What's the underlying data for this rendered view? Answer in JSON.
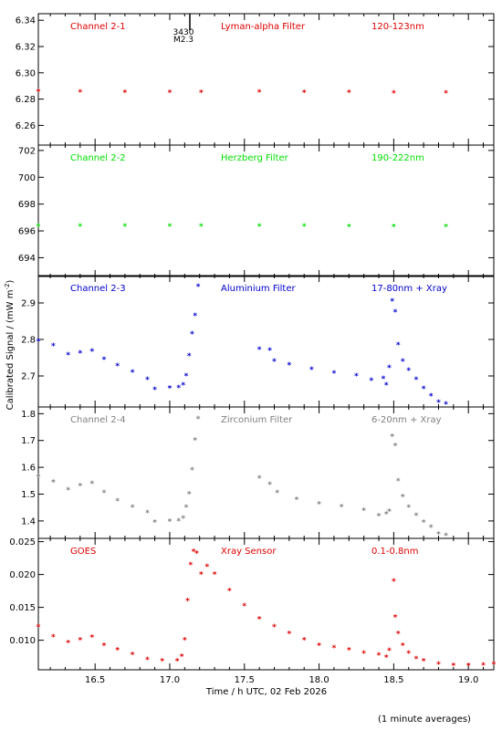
{
  "figure": {
    "y_axis_label": "Calibrated Signal / (mW m",
    "y_axis_label_sup": "-2",
    "y_axis_label_end": ")",
    "x_axis_label": "Time / h UTC, 02 Feb 2026",
    "footnote": "(1 minute averages)",
    "x_ticks": [
      "16.5",
      "17.0",
      "17.5",
      "18.0",
      "18.5",
      "19.0"
    ],
    "event_label_top": "3430",
    "event_label_bottom": "M2.3"
  },
  "chart_data": [
    {
      "type": "scatter",
      "channel": "Channel 2-1",
      "filter": "Lyman-alpha Filter",
      "band": "120-123nm",
      "color": "#e00000",
      "ylim": [
        6.245,
        6.345
      ],
      "yticks": [
        "6.26",
        "6.28",
        "6.30",
        "6.32",
        "6.34"
      ],
      "xlim": [
        16.12,
        19.17
      ],
      "series": [
        {
          "x": [
            16.12,
            16.4,
            16.7,
            17.0,
            17.21
          ],
          "values": [
            6.2855,
            6.2853,
            6.2851,
            6.285,
            6.2849
          ]
        },
        {
          "x": [
            17.6,
            17.9,
            18.2,
            18.5,
            18.85
          ],
          "values": [
            6.2852,
            6.285,
            6.2849,
            6.2847,
            6.2846
          ]
        }
      ]
    },
    {
      "type": "scatter",
      "channel": "Channel 2-2",
      "filter": "Herzberg Filter",
      "band": "190-222nm",
      "color": "#00e000",
      "ylim": [
        692.6,
        702.4
      ],
      "yticks": [
        "694",
        "696",
        "698",
        "700",
        "702"
      ],
      "xlim": [
        16.12,
        19.17
      ],
      "series": [
        {
          "x": [
            16.12,
            16.4,
            16.7,
            17.0,
            17.21
          ],
          "values": [
            696.35,
            696.35,
            696.34,
            696.34,
            696.33
          ]
        },
        {
          "x": [
            17.6,
            17.9,
            18.2,
            18.5,
            18.85
          ],
          "values": [
            696.33,
            696.33,
            696.32,
            696.32,
            696.31
          ]
        }
      ]
    },
    {
      "type": "scatter",
      "channel": "Channel 2-3",
      "filter": "Aluminium Filter",
      "band": "17-80nm + Xray",
      "color": "#0000d0",
      "ylim": [
        2.615,
        2.975
      ],
      "yticks": [
        "2.7",
        "2.8",
        "2.9"
      ],
      "xlim": [
        16.12,
        19.17
      ],
      "series": [
        {
          "x": [
            16.12,
            16.22,
            16.32,
            16.4,
            16.48,
            16.56,
            16.65,
            16.75,
            16.85,
            16.9,
            17.0,
            17.06,
            17.09,
            17.11,
            17.13,
            17.15,
            17.17,
            17.19
          ],
          "values": [
            2.795,
            2.783,
            2.757,
            2.763,
            2.768,
            2.745,
            2.728,
            2.71,
            2.69,
            2.663,
            2.666,
            2.668,
            2.675,
            2.7,
            2.755,
            2.815,
            2.865,
            2.945
          ]
        },
        {
          "x": [
            17.6,
            17.67,
            17.7,
            17.8,
            17.95,
            18.1,
            18.25,
            18.35,
            18.43,
            18.45
          ],
          "values": [
            2.773,
            2.77,
            2.74,
            2.73,
            2.718,
            2.708,
            2.7,
            2.688,
            2.693,
            2.675
          ]
        },
        {
          "x": [
            18.47,
            18.49,
            18.51,
            18.53,
            18.56,
            18.6,
            18.65,
            18.7,
            18.75,
            18.8,
            18.85
          ],
          "values": [
            2.722,
            2.905,
            2.875,
            2.785,
            2.74,
            2.715,
            2.69,
            2.665,
            2.645,
            2.628,
            2.622
          ]
        }
      ]
    },
    {
      "type": "scatter",
      "channel": "Channel 2-4",
      "filter": "Zirconium Filter",
      "band": "6-20nm + Xray",
      "color": "#808080",
      "ylim": [
        1.335,
        1.825
      ],
      "yticks": [
        "1.4",
        "1.5",
        "1.6",
        "1.7",
        "1.8"
      ],
      "xlim": [
        16.12,
        19.17
      ],
      "series": [
        {
          "x": [
            16.12,
            16.22,
            16.32,
            16.4,
            16.48,
            16.56,
            16.65,
            16.75,
            16.85,
            16.9,
            17.0,
            17.06,
            17.09,
            17.11,
            17.13,
            17.15,
            17.17,
            17.19
          ],
          "values": [
            1.565,
            1.545,
            1.515,
            1.53,
            1.54,
            1.505,
            1.475,
            1.45,
            1.43,
            1.395,
            1.398,
            1.4,
            1.41,
            1.45,
            1.5,
            1.59,
            1.7,
            1.78
          ]
        },
        {
          "x": [
            17.6,
            17.67,
            17.72,
            17.85,
            18.0,
            18.15,
            18.3,
            18.4,
            18.45
          ],
          "values": [
            1.56,
            1.535,
            1.505,
            1.48,
            1.462,
            1.452,
            1.438,
            1.418,
            1.425
          ]
        },
        {
          "x": [
            18.47,
            18.49,
            18.51,
            18.53,
            18.56,
            18.6,
            18.65,
            18.7,
            18.75,
            18.8,
            18.85
          ],
          "values": [
            1.435,
            1.715,
            1.68,
            1.55,
            1.49,
            1.45,
            1.42,
            1.395,
            1.375,
            1.35,
            1.345
          ]
        }
      ]
    },
    {
      "type": "scatter",
      "channel": "GOES",
      "filter": "Xray Sensor",
      "band": "0.1-0.8nm",
      "color": "#e00000",
      "ylim": [
        0.0055,
        0.0255
      ],
      "yticks": [
        "0.010",
        "0.015",
        "0.020",
        "0.025"
      ],
      "xlim": [
        16.12,
        19.17
      ],
      "series": [
        {
          "x": [
            16.12,
            16.22,
            16.32,
            16.4,
            16.48,
            16.56,
            16.65,
            16.75,
            16.85,
            16.95,
            17.05,
            17.08,
            17.1,
            17.12,
            17.14,
            17.16,
            17.18,
            17.21,
            17.25,
            17.3,
            17.4,
            17.5,
            17.6,
            17.7,
            17.8,
            17.9,
            18.0,
            18.1,
            18.2,
            18.3,
            18.4,
            18.45
          ],
          "values": [
            0.012,
            0.0105,
            0.0096,
            0.01,
            0.0104,
            0.0092,
            0.0085,
            0.0078,
            0.007,
            0.0068,
            0.0068,
            0.0075,
            0.01,
            0.016,
            0.0215,
            0.0235,
            0.0232,
            0.02,
            0.0212,
            0.02,
            0.0175,
            0.0152,
            0.0132,
            0.012,
            0.011,
            0.01,
            0.0092,
            0.0088,
            0.0085,
            0.008,
            0.0077,
            0.0074
          ]
        },
        {
          "x": [
            18.47,
            18.5,
            18.51,
            18.53,
            18.56,
            18.6,
            18.65,
            18.7,
            18.8,
            18.9,
            19.0,
            19.1,
            19.17
          ],
          "values": [
            0.0084,
            0.019,
            0.0135,
            0.011,
            0.0092,
            0.008,
            0.0072,
            0.0068,
            0.0063,
            0.0061,
            0.0061,
            0.0062,
            0.0063
          ]
        }
      ]
    }
  ]
}
